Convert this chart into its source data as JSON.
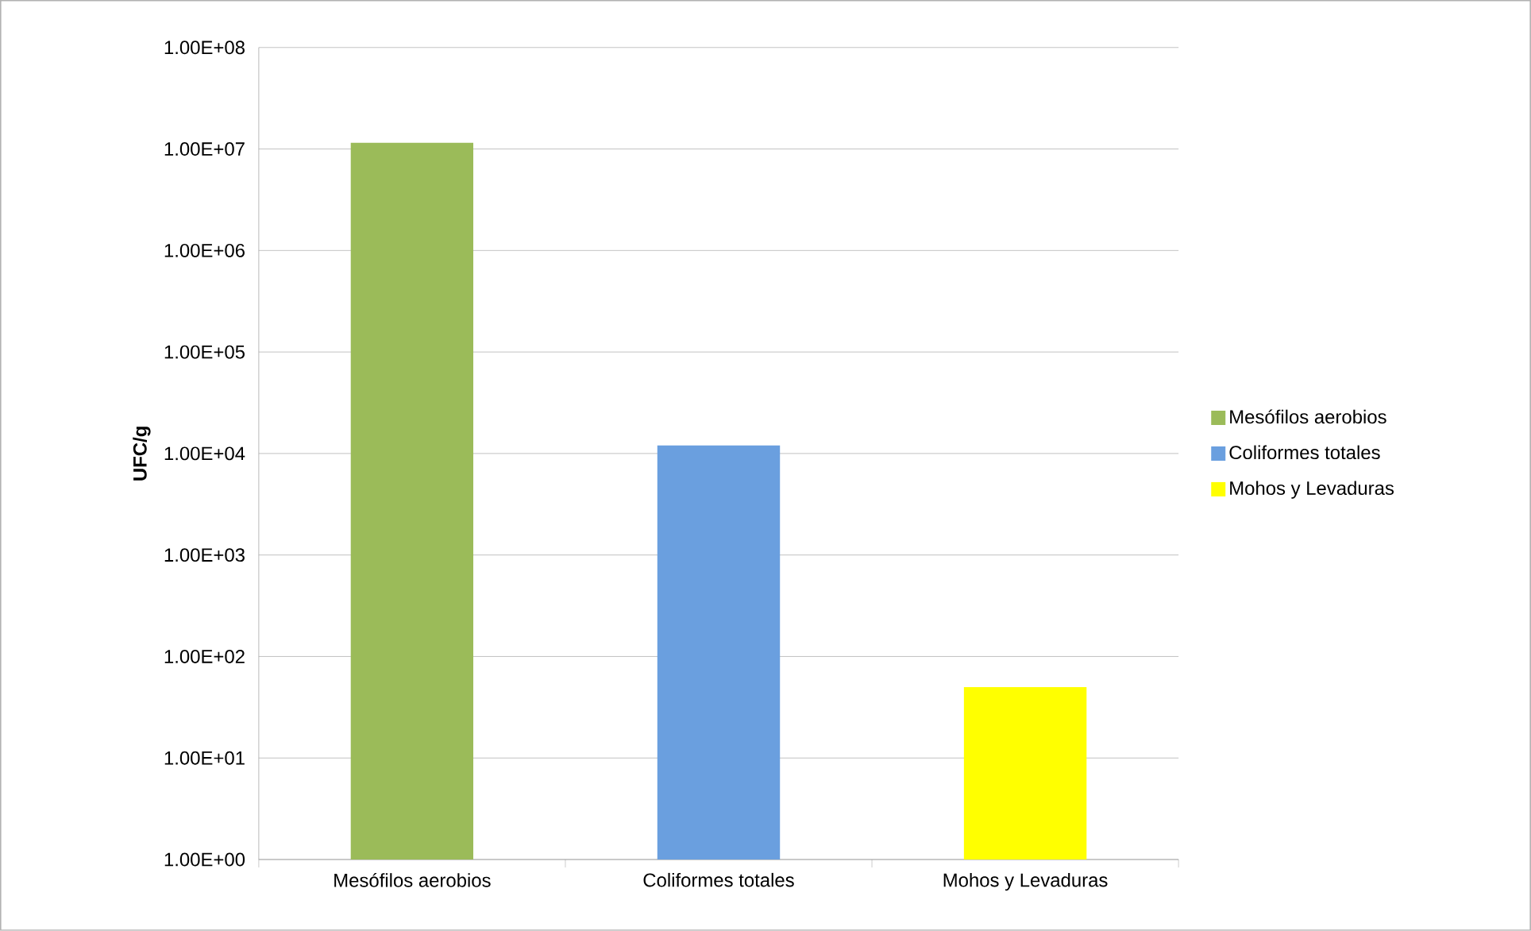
{
  "chart_data": {
    "type": "bar",
    "ylabel": "UFC/g",
    "categories": [
      "Mesófilos aerobios",
      "Coliformes totales",
      "Mohos y Levaduras"
    ],
    "series": [
      {
        "name": "Mesófilos aerobios",
        "color": "#9bbb59",
        "values": [
          11500000,
          null,
          null
        ]
      },
      {
        "name": "Coliformes totales",
        "color": "#6a9fdf",
        "values": [
          null,
          12000,
          null
        ]
      },
      {
        "name": "Mohos y Levaduras",
        "color": "#ffff00",
        "values": [
          null,
          null,
          50
        ]
      }
    ],
    "log": "y",
    "ylim": [
      1,
      100000000
    ],
    "yticks": [
      {
        "value": 1,
        "label": "1.00E+00"
      },
      {
        "value": 10,
        "label": "1.00E+01"
      },
      {
        "value": 100,
        "label": "1.00E+02"
      },
      {
        "value": 1000,
        "label": "1.00E+03"
      },
      {
        "value": 10000,
        "label": "1.00E+04"
      },
      {
        "value": 100000,
        "label": "1.00E+05"
      },
      {
        "value": 1000000,
        "label": "1.00E+06"
      },
      {
        "value": 10000000,
        "label": "1.00E+07"
      },
      {
        "value": 100000000,
        "label": "1.00E+08"
      }
    ],
    "grid": "y",
    "legend": "right"
  }
}
